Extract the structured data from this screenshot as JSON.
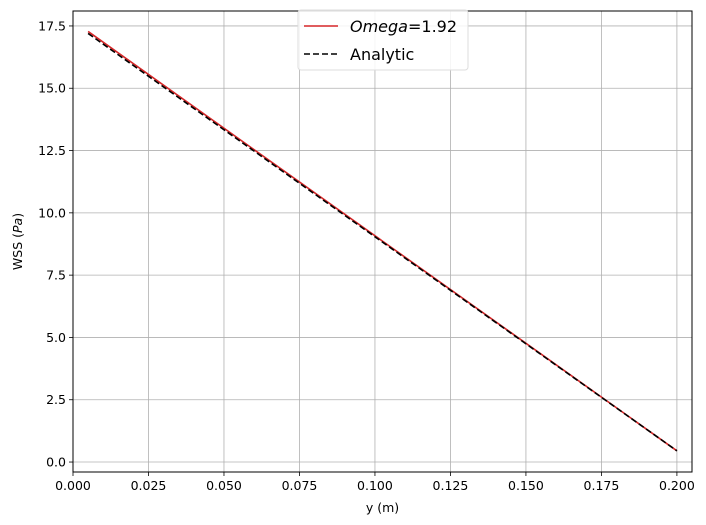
{
  "chart_data": {
    "type": "line",
    "xlabel": "y (m)",
    "ylabel_text": "WSS (",
    "ylabel_italic": "Pa",
    "ylabel_close": ")",
    "xlim": [
      0.0,
      0.205
    ],
    "ylim": [
      -0.4,
      18.1
    ],
    "xticks": [
      0.0,
      0.025,
      0.05,
      0.075,
      0.1,
      0.125,
      0.15,
      0.175,
      0.2
    ],
    "xtick_labels": [
      "0.000",
      "0.025",
      "0.050",
      "0.075",
      "0.100",
      "0.125",
      "0.150",
      "0.175",
      "0.200"
    ],
    "yticks": [
      0.0,
      2.5,
      5.0,
      7.5,
      10.0,
      12.5,
      15.0,
      17.5
    ],
    "ytick_labels": [
      "0.0",
      "2.5",
      "5.0",
      "7.5",
      "10.0",
      "12.5",
      "15.0",
      "17.5"
    ],
    "grid": true,
    "legend_position": "top-center",
    "series": [
      {
        "name_italic": "Omega",
        "name_rest": "=1.92",
        "color": "#d62728",
        "style": "solid",
        "x": [
          0.005,
          0.2
        ],
        "y": [
          17.28,
          0.45
        ]
      },
      {
        "name": "Analytic",
        "color": "#000000",
        "style": "dashed",
        "x": [
          0.005,
          0.2
        ],
        "y": [
          17.2,
          0.45
        ]
      }
    ]
  }
}
